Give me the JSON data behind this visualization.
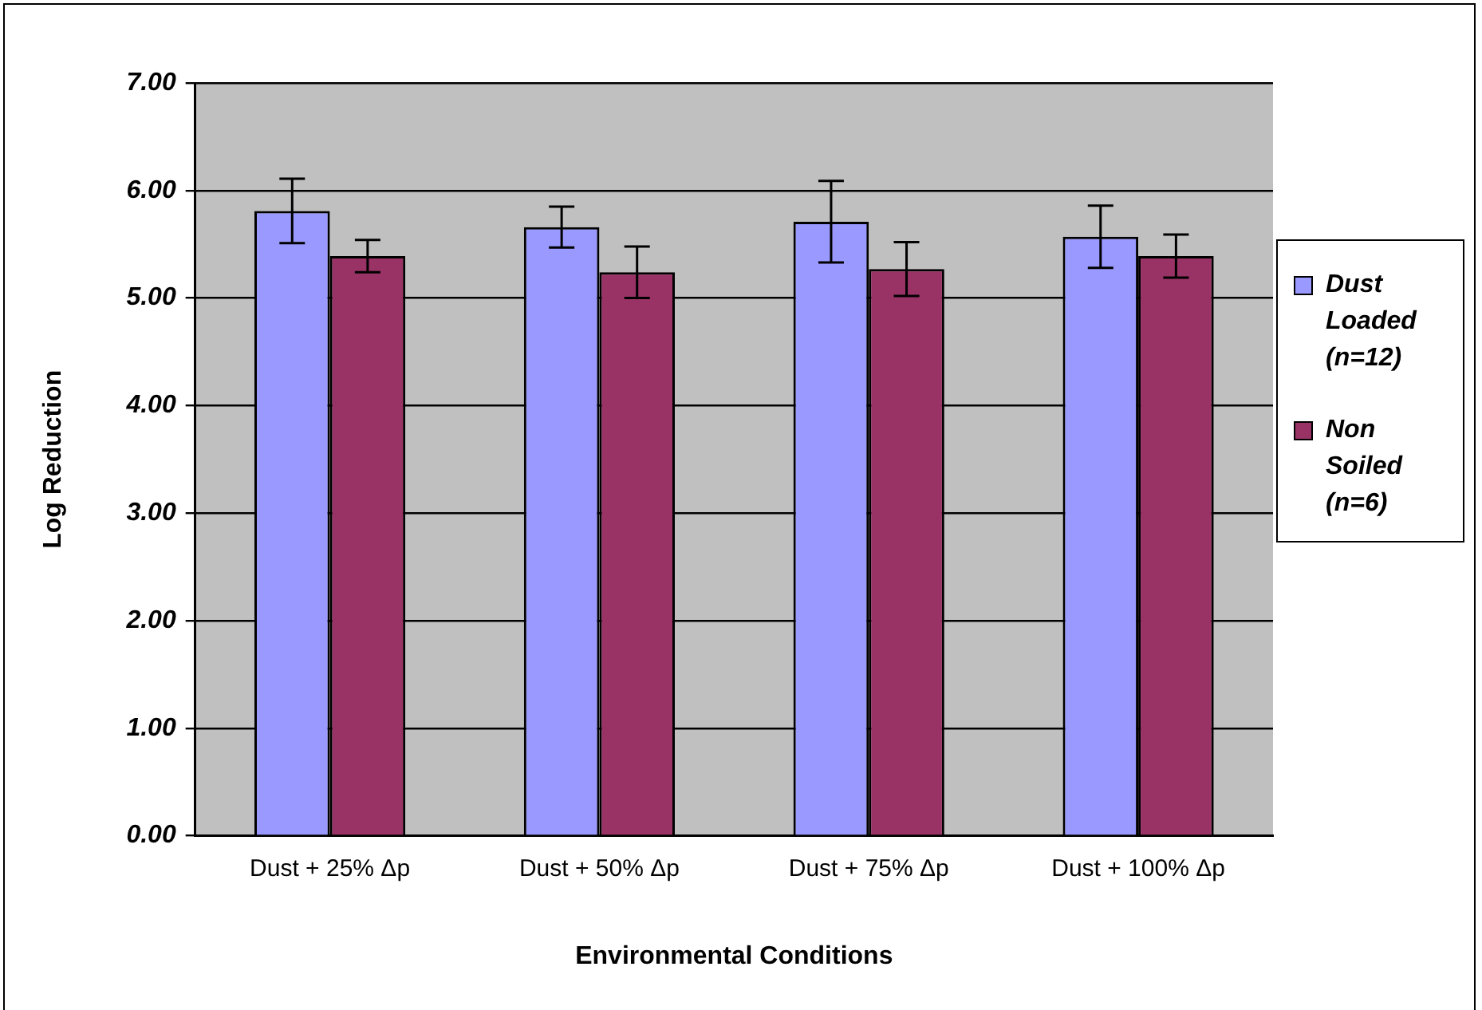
{
  "chart_data": {
    "type": "bar",
    "xlabel": "Environmental Conditions",
    "ylabel": "Log Reduction",
    "categories": [
      "Dust + 25% Δp",
      "Dust + 50% Δp",
      "Dust + 75% Δp",
      "Dust + 100% Δp"
    ],
    "series": [
      {
        "name": "Dust Loaded (n=12)",
        "color": "#9999ff",
        "values": [
          5.81,
          5.66,
          5.71,
          5.57
        ],
        "errors": [
          0.3,
          0.19,
          0.38,
          0.29
        ]
      },
      {
        "name": "Non Soiled (n=6)",
        "color": "#993366",
        "values": [
          5.39,
          5.24,
          5.27,
          5.39
        ],
        "errors": [
          0.15,
          0.24,
          0.25,
          0.2
        ]
      }
    ],
    "ylim": [
      0,
      7
    ],
    "yticks": [
      {
        "value": 0,
        "label": "0.00"
      },
      {
        "value": 1,
        "label": "1.00"
      },
      {
        "value": 2,
        "label": "2.00"
      },
      {
        "value": 3,
        "label": "3.00"
      },
      {
        "value": 4,
        "label": "4.00"
      },
      {
        "value": 5,
        "label": "5.00"
      },
      {
        "value": 6,
        "label": "6.00"
      },
      {
        "value": 7,
        "label": "7.00"
      }
    ],
    "grid": "y",
    "legend": "right"
  }
}
